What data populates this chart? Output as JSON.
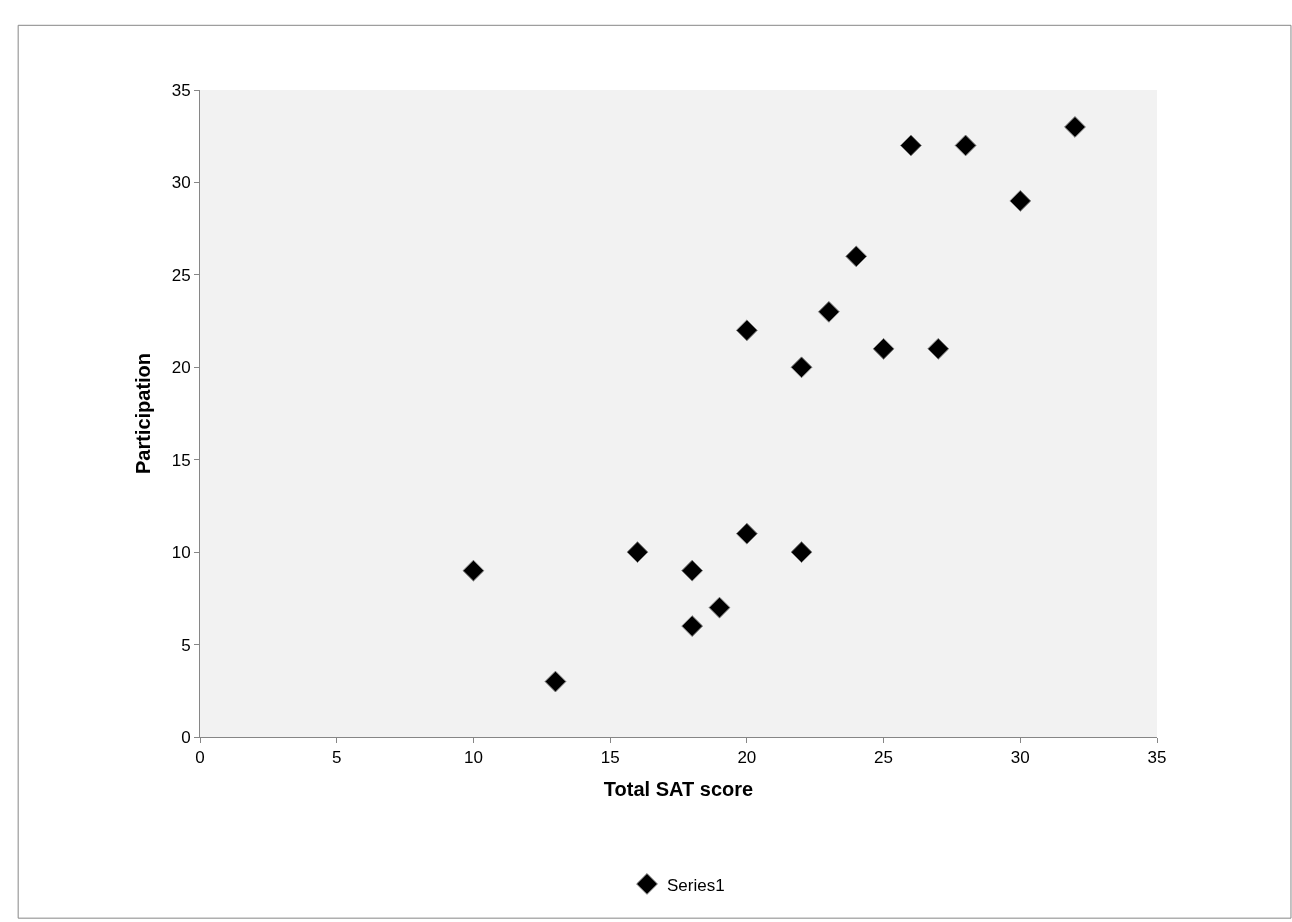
{
  "chart_data": {
    "type": "scatter",
    "xlabel": "Total SAT score",
    "ylabel": "Participation",
    "series": [
      {
        "name": "Series1",
        "color": "#000000",
        "x": [
          10,
          13,
          16,
          18,
          18,
          19,
          20,
          22,
          20,
          22,
          23,
          24,
          25,
          27,
          26,
          28,
          30,
          32
        ],
        "values": [
          9,
          3,
          10,
          9,
          6,
          7,
          11,
          10,
          22,
          20,
          23,
          26,
          21,
          21,
          32,
          32,
          29,
          33
        ]
      }
    ],
    "xlim": [
      0,
      35
    ],
    "xticks": [
      0,
      5,
      10,
      15,
      20,
      25,
      30,
      35
    ],
    "ylim": [
      0,
      35
    ],
    "yticks": [
      0,
      5,
      10,
      15,
      20,
      25,
      30,
      35
    ],
    "grid": false,
    "legend": "bottom",
    "marker": "diamond"
  }
}
